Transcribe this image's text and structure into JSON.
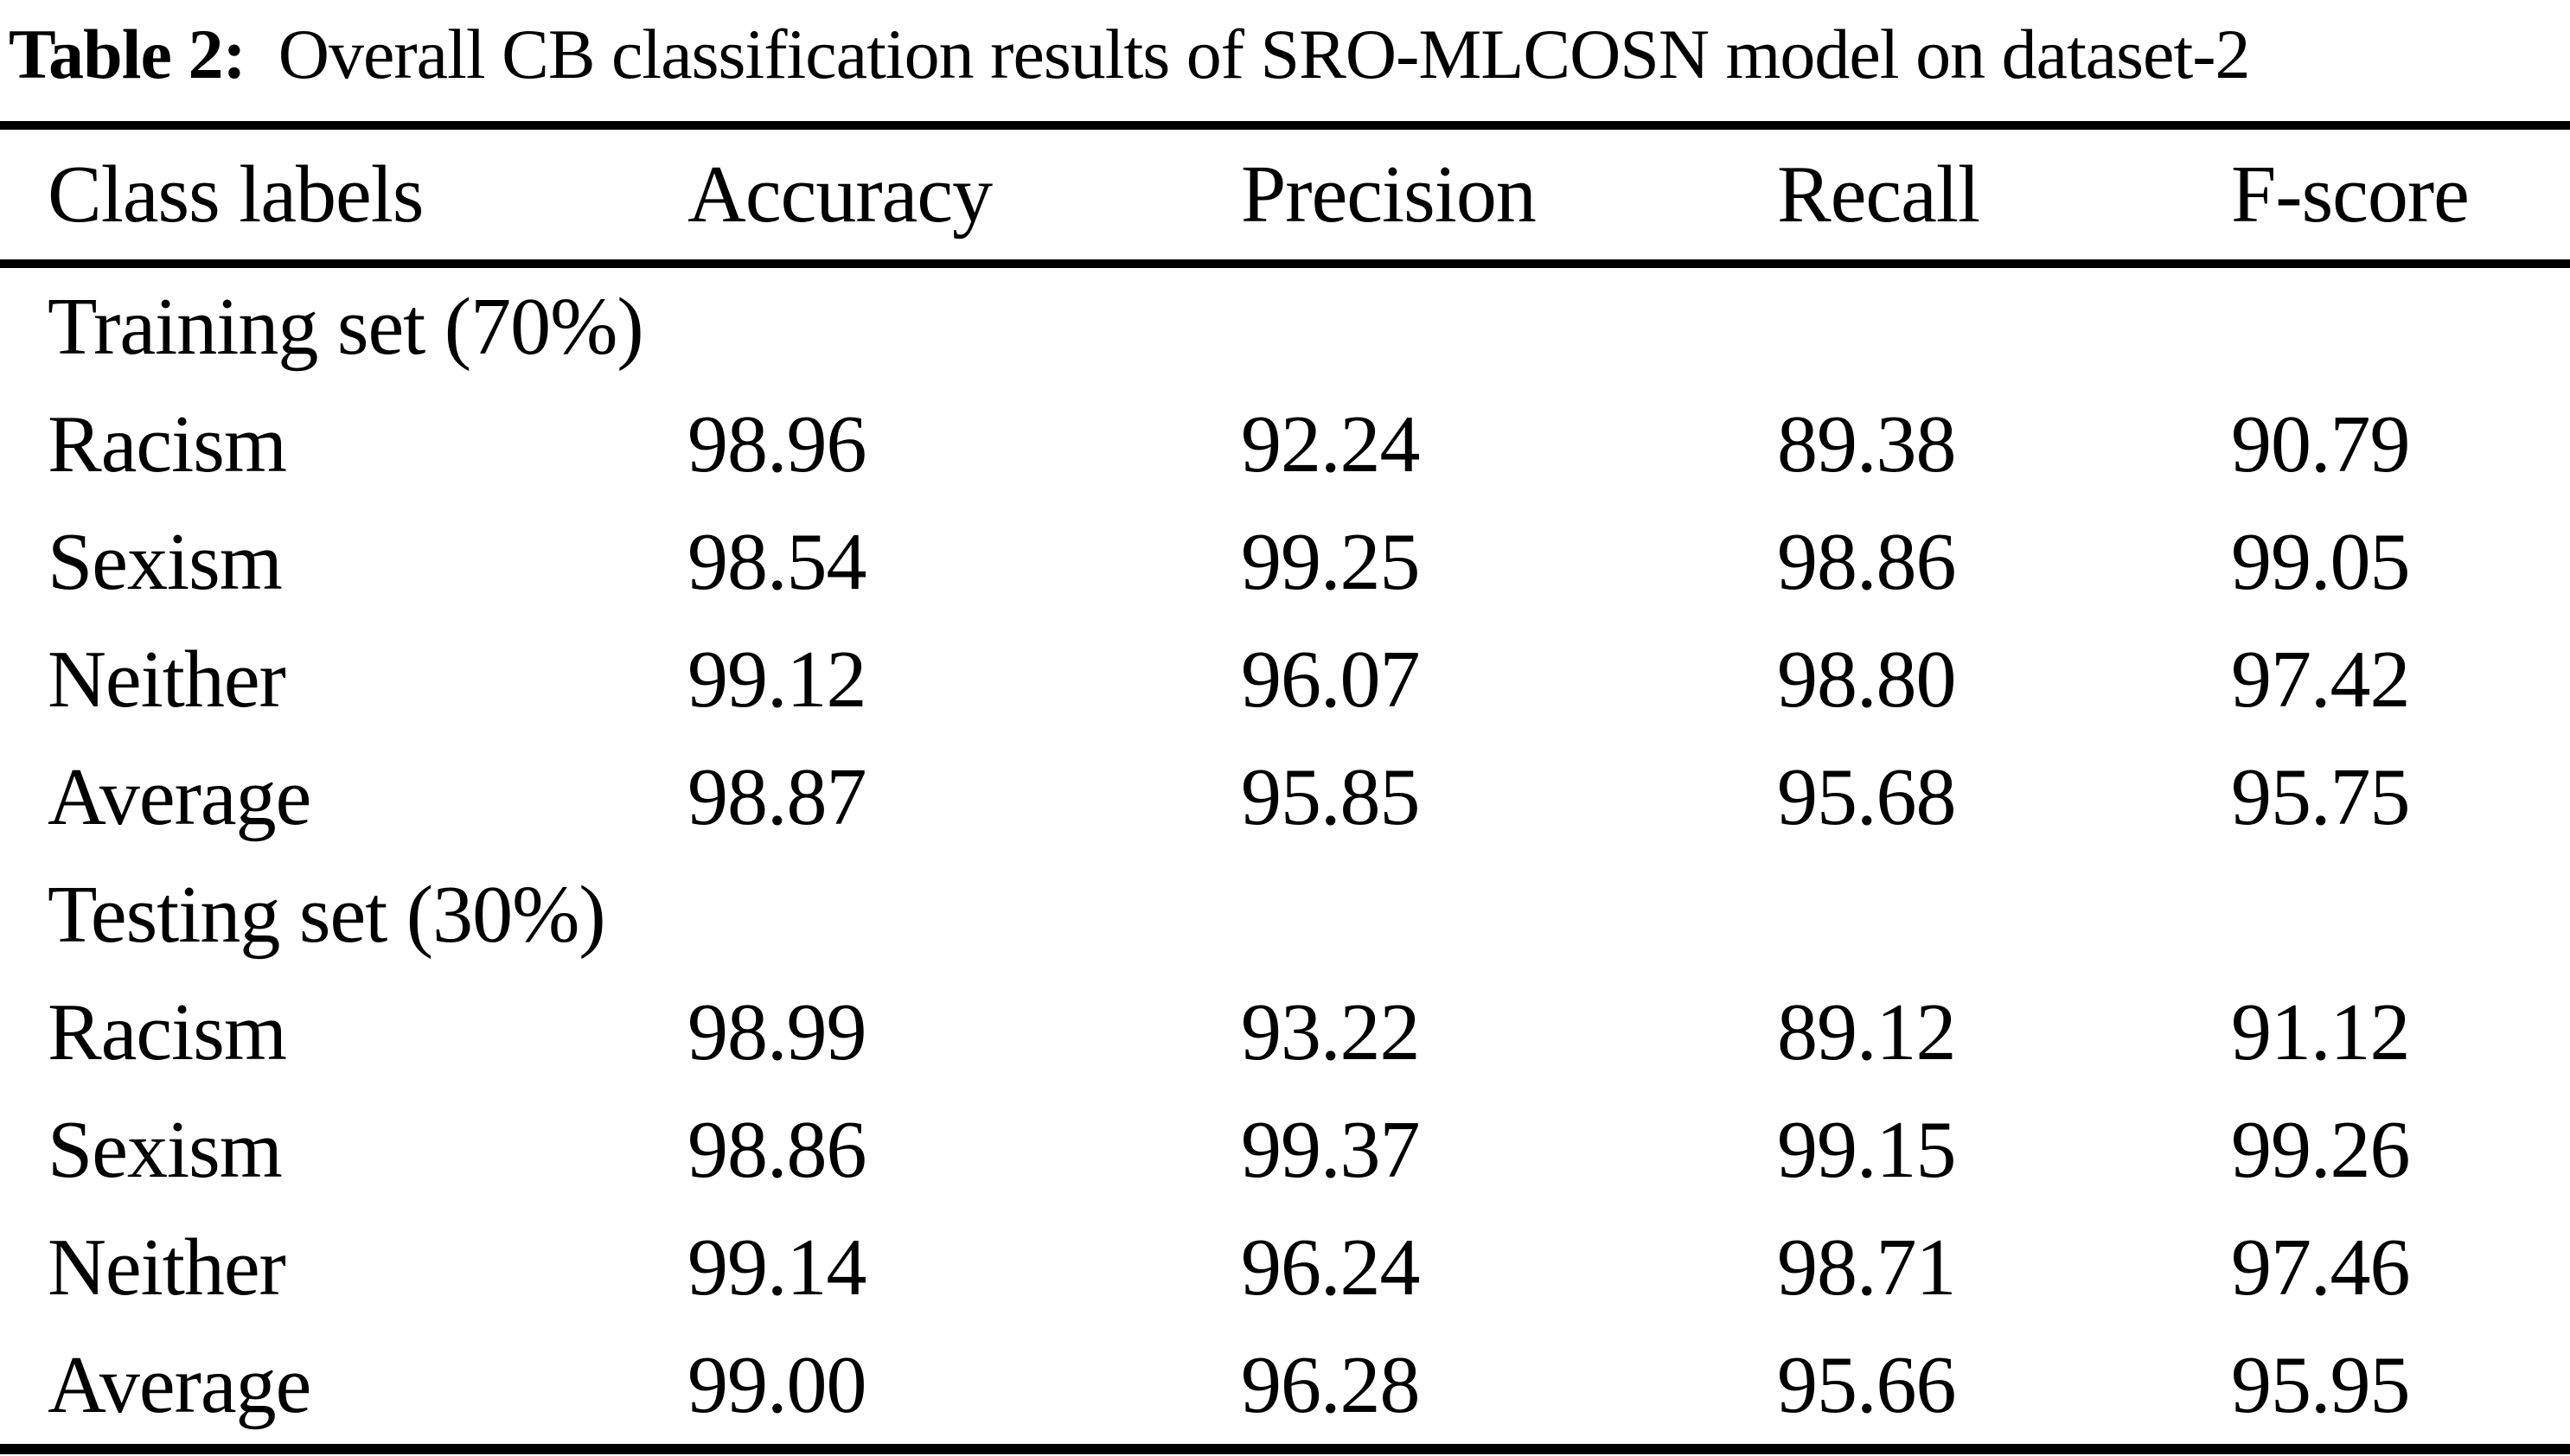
{
  "table": {
    "caption_label": "Table 2:",
    "caption_text": "Overall CB classification results of SRO-MLCOSN model on dataset-2",
    "columns": [
      "Class labels",
      "Accuracy",
      "Precision",
      "Recall",
      "F-score"
    ],
    "sections": [
      {
        "title": "Training set (70%)",
        "rows": [
          {
            "label": "Racism",
            "values": [
              "98.96",
              "92.24",
              "89.38",
              "90.79"
            ]
          },
          {
            "label": "Sexism",
            "values": [
              "98.54",
              "99.25",
              "98.86",
              "99.05"
            ]
          },
          {
            "label": "Neither",
            "values": [
              "99.12",
              "96.07",
              "98.80",
              "97.42"
            ]
          },
          {
            "label": "Average",
            "values": [
              "98.87",
              "95.85",
              "95.68",
              "95.75"
            ]
          }
        ]
      },
      {
        "title": "Testing set (30%)",
        "rows": [
          {
            "label": "Racism",
            "values": [
              "98.99",
              "93.22",
              "89.12",
              "91.12"
            ]
          },
          {
            "label": "Sexism",
            "values": [
              "98.86",
              "99.37",
              "99.15",
              "99.26"
            ]
          },
          {
            "label": "Neither",
            "values": [
              "99.14",
              "96.24",
              "98.71",
              "97.46"
            ]
          },
          {
            "label": "Average",
            "values": [
              "99.00",
              "96.28",
              "95.66",
              "95.95"
            ]
          }
        ]
      }
    ]
  },
  "chart_data": {
    "type": "table",
    "title": "Table 2: Overall CB classification results of SRO-MLCOSN model on dataset-2",
    "columns": [
      "Class labels",
      "Accuracy",
      "Precision",
      "Recall",
      "F-score"
    ],
    "rows": [
      [
        "Training set (70%)",
        null,
        null,
        null,
        null
      ],
      [
        "Racism",
        98.96,
        92.24,
        89.38,
        90.79
      ],
      [
        "Sexism",
        98.54,
        99.25,
        98.86,
        99.05
      ],
      [
        "Neither",
        99.12,
        96.07,
        98.8,
        97.42
      ],
      [
        "Average",
        98.87,
        95.85,
        95.68,
        95.75
      ],
      [
        "Testing set (30%)",
        null,
        null,
        null,
        null
      ],
      [
        "Racism",
        98.99,
        93.22,
        89.12,
        91.12
      ],
      [
        "Sexism",
        98.86,
        99.37,
        99.15,
        99.26
      ],
      [
        "Neither",
        99.14,
        96.24,
        98.71,
        97.46
      ],
      [
        "Average",
        99.0,
        96.28,
        95.66,
        95.95
      ]
    ]
  }
}
